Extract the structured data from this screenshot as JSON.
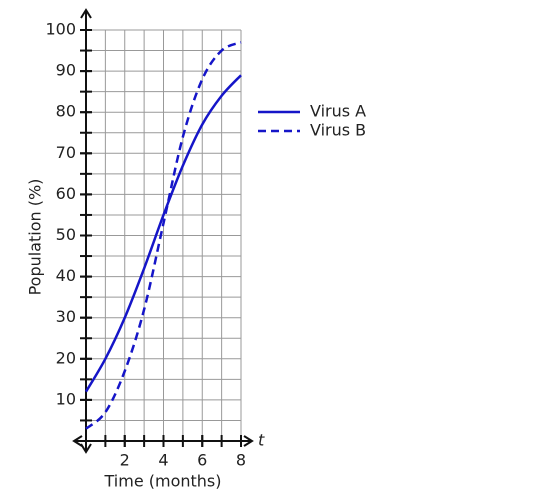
{
  "chart_data": {
    "type": "line",
    "x_label": "Time (months)",
    "y_label": "Population (%)",
    "x_axis_symbol": "t",
    "x": [
      0,
      1,
      2,
      3,
      4,
      5,
      6,
      7,
      8
    ],
    "series": [
      {
        "name": "Virus A",
        "color": "#1515c8",
        "dash": "solid",
        "values": [
          12,
          20,
          30,
          42,
          55,
          67,
          77,
          84,
          89
        ]
      },
      {
        "name": "Virus B",
        "color": "#1515c8",
        "dash": "dashed",
        "values": [
          3,
          7,
          17,
          32,
          53,
          74,
          88,
          95,
          97
        ]
      }
    ],
    "xlim": [
      0,
      8
    ],
    "xticks": [
      2,
      4,
      6,
      8
    ],
    "ylim": [
      0,
      100
    ],
    "yticks": [
      10,
      20,
      30,
      40,
      50,
      60,
      70,
      80,
      90,
      100
    ],
    "grid": true,
    "legend": "right"
  }
}
